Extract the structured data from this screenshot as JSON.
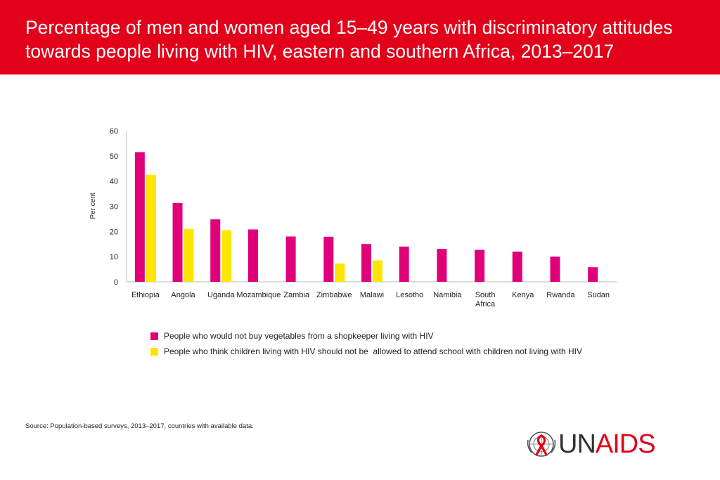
{
  "title": "Percentage of men and women aged 15–49 years with discriminatory attitudes towards people living with HIV, eastern and southern Africa, 2013–2017",
  "source": {
    "label": "Source:",
    "text": "Population-based surveys, 2013–2017, countries with available data."
  },
  "logo": {
    "part1": "UN",
    "part2": "AIDS",
    "emblem": "un-emblem-ribbon-icon"
  },
  "colors": {
    "header": "#e2001a",
    "series1": "#e0007a",
    "series2": "#ffe600"
  },
  "chart_data": {
    "type": "bar",
    "title": "",
    "xlabel": "",
    "ylabel": "Per cent",
    "ylim": [
      0,
      60
    ],
    "yticks": [
      0,
      10,
      20,
      30,
      40,
      50,
      60
    ],
    "grid": false,
    "legend_position": "bottom",
    "categories": [
      "Ethiopia",
      "Angola",
      "Uganda",
      "Mozambique",
      "Zambia",
      "Zimbabwe",
      "Malawi",
      "Lesotho",
      "Namibia",
      "South Africa",
      "Kenya",
      "Rwanda",
      "Sudan"
    ],
    "series": [
      {
        "name": "People who would not buy vegetables from a shopkeeper living with HIV",
        "color": "#e0007a",
        "values": [
          51.5,
          31.3,
          24.8,
          20.8,
          18.0,
          17.9,
          15.0,
          14.0,
          13.1,
          12.7,
          12.0,
          10.0,
          5.8
        ]
      },
      {
        "name": "People who think children living with HIV should not be  allowed to attend school with children not living with HIV",
        "color": "#ffe600",
        "values": [
          42.5,
          21.0,
          20.5,
          null,
          null,
          7.3,
          8.5,
          null,
          null,
          null,
          null,
          null,
          null
        ]
      }
    ]
  }
}
